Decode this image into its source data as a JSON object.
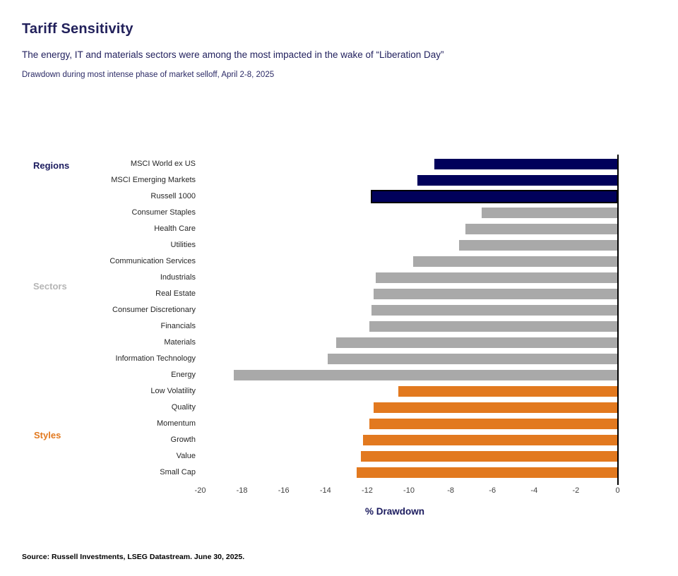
{
  "header": {
    "title": "Tariff Sensitivity",
    "subtitle": "The energy, IT and materials sectors were among the most impacted in the wake of “Liberation Day”",
    "note": "Drawdown during most intense phase of market selloff, April 2-8, 2025"
  },
  "chart_data": {
    "type": "bar",
    "orientation": "horizontal",
    "title": "Tariff Sensitivity",
    "xlabel": "% Drawdown",
    "xlim": [
      -20,
      0
    ],
    "xticks": [
      -20,
      -18,
      -16,
      -14,
      -12,
      -10,
      -8,
      -6,
      -4,
      -2,
      0
    ],
    "grid": false,
    "legend_position": "none",
    "groups": [
      {
        "label": "Regions",
        "color": "#01015B",
        "label_color": "#1B1B5E"
      },
      {
        "label": "Sectors",
        "color": "#A9A9A9",
        "label_color": "#B5B5B5"
      },
      {
        "label": "Styles",
        "color": "#E2791F",
        "label_color": "#E2791F"
      }
    ],
    "bars": [
      {
        "category": "MSCI World ex US",
        "value": -8.8,
        "group": "Regions"
      },
      {
        "category": "MSCI Emerging Markets",
        "value": -9.6,
        "group": "Regions"
      },
      {
        "category": "Russell 1000",
        "value": -11.7,
        "group": "Regions",
        "highlighted": true
      },
      {
        "category": "Consumer Staples",
        "value": -6.5,
        "group": "Sectors"
      },
      {
        "category": "Health Care",
        "value": -7.3,
        "group": "Sectors"
      },
      {
        "category": "Utilities",
        "value": -7.6,
        "group": "Sectors"
      },
      {
        "category": "Communication Services",
        "value": -9.8,
        "group": "Sectors"
      },
      {
        "category": "Industrials",
        "value": -11.6,
        "group": "Sectors"
      },
      {
        "category": "Real Estate",
        "value": -11.7,
        "group": "Sectors"
      },
      {
        "category": "Consumer Discretionary",
        "value": -11.8,
        "group": "Sectors"
      },
      {
        "category": "Financials",
        "value": -11.9,
        "group": "Sectors"
      },
      {
        "category": "Materials",
        "value": -13.5,
        "group": "Sectors"
      },
      {
        "category": "Information Technology",
        "value": -13.9,
        "group": "Sectors"
      },
      {
        "category": "Energy",
        "value": -18.4,
        "group": "Sectors"
      },
      {
        "category": "Low Volatility",
        "value": -10.5,
        "group": "Styles"
      },
      {
        "category": "Quality",
        "value": -11.7,
        "group": "Styles"
      },
      {
        "category": "Momentum",
        "value": -11.9,
        "group": "Styles"
      },
      {
        "category": "Growth",
        "value": -12.2,
        "group": "Styles"
      },
      {
        "category": "Value",
        "value": -12.3,
        "group": "Styles"
      },
      {
        "category": "Small Cap",
        "value": -12.5,
        "group": "Styles"
      }
    ]
  },
  "footer": {
    "source": "Source: Russell Investments, LSEG Datastream. June 30, 2025."
  }
}
